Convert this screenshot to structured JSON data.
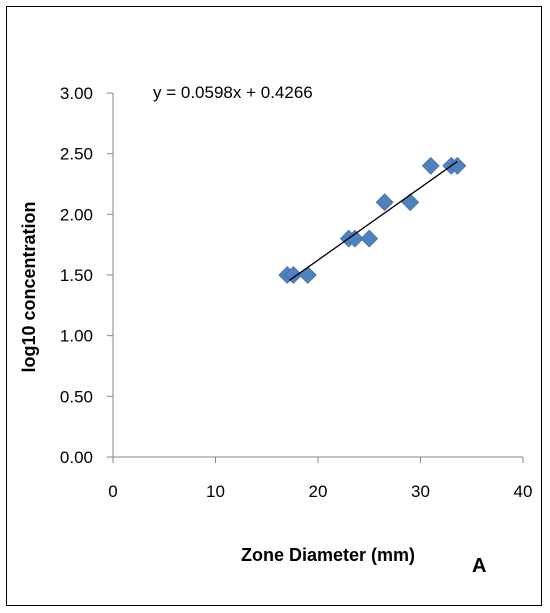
{
  "chart_data": {
    "type": "scatter",
    "xlabel": "Zone Diameter (mm)",
    "ylabel": "log10 concentration",
    "panel_label": "A",
    "equation": "y = 0.0598x + 0.4266",
    "xlim": [
      0,
      40
    ],
    "ylim": [
      0,
      3
    ],
    "xticks": [
      "0",
      "10",
      "20",
      "30",
      "40"
    ],
    "yticks": [
      "0.00",
      "0.50",
      "1.00",
      "1.50",
      "2.00",
      "2.50",
      "3.00"
    ],
    "grid": false,
    "legend": "none",
    "marker": "diamond",
    "marker_color": "#4f81bd",
    "trendline": {
      "slope": 0.0598,
      "intercept": 0.4266,
      "x_range": [
        17.2,
        33.6
      ]
    },
    "points": [
      {
        "x": 17.0,
        "y": 1.5
      },
      {
        "x": 17.6,
        "y": 1.5
      },
      {
        "x": 19.0,
        "y": 1.5
      },
      {
        "x": 23.0,
        "y": 1.8
      },
      {
        "x": 23.6,
        "y": 1.8
      },
      {
        "x": 25.0,
        "y": 1.8
      },
      {
        "x": 26.5,
        "y": 2.1
      },
      {
        "x": 29.0,
        "y": 2.1
      },
      {
        "x": 31.0,
        "y": 2.4
      },
      {
        "x": 33.0,
        "y": 2.4
      },
      {
        "x": 33.6,
        "y": 2.4
      }
    ]
  }
}
